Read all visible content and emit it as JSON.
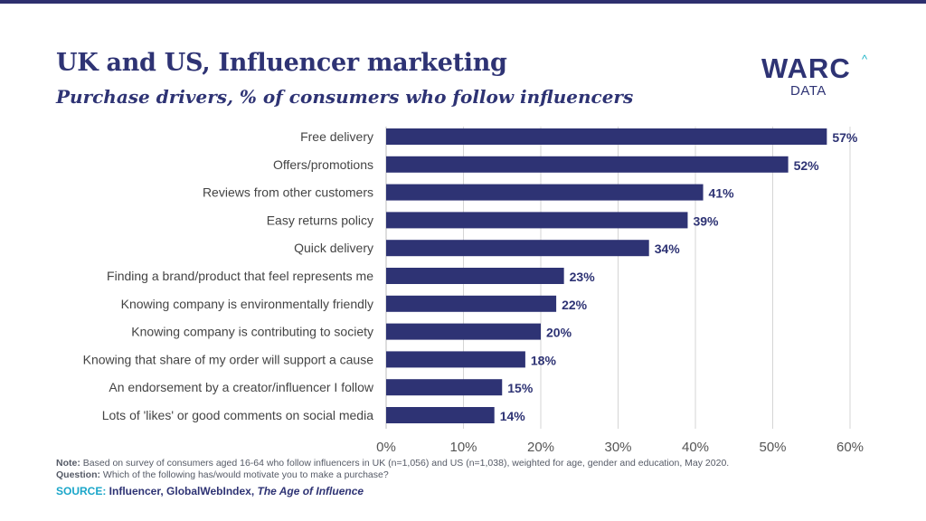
{
  "title": "UK and US, Influencer marketing",
  "subtitle": "Purchase drivers, % of consumers who follow influencers",
  "logo": {
    "word": "WARC",
    "caret": "^",
    "sub": "DATA"
  },
  "colors": {
    "bar": "#2e3374",
    "text": "#2e3374",
    "label": "#444444",
    "axis": "#555555",
    "grid": "#d5d5d5",
    "accent": "#1aa6c9"
  },
  "chart_data": {
    "type": "bar",
    "orientation": "horizontal",
    "categories": [
      "Free delivery",
      "Offers/promotions",
      "Reviews from other customers",
      "Easy returns policy",
      "Quick delivery",
      "Finding a brand/product that feel represents me",
      "Knowing company is environmentally friendly",
      "Knowing company is contributing to society",
      "Knowing that share of my order will support a cause",
      "An endorsement by a creator/influencer I follow",
      "Lots of 'likes' or good comments on social media"
    ],
    "values": [
      57,
      52,
      41,
      39,
      34,
      23,
      22,
      20,
      18,
      15,
      14
    ],
    "value_labels": [
      "57%",
      "52%",
      "41%",
      "39%",
      "34%",
      "23%",
      "22%",
      "20%",
      "18%",
      "15%",
      "14%"
    ],
    "xlim": [
      0,
      60
    ],
    "x_ticks": [
      0,
      10,
      20,
      30,
      40,
      50,
      60
    ],
    "x_tick_labels": [
      "0%",
      "10%",
      "20%",
      "30%",
      "40%",
      "50%",
      "60%"
    ],
    "grid": true
  },
  "footer": {
    "note_label": "Note:",
    "note_text": " Based on survey of consumers aged 16-64 who follow influencers in UK (n=1,056) and US (n=1,038), weighted for age, gender and education, May 2020.",
    "question_label": "Question:",
    "question_text": " Which of the following has/would motivate you to make a purchase?",
    "source_label": "SOURCE:",
    "source_text": " Influencer, GlobalWebIndex,",
    "source_italic": " The Age of Influence"
  }
}
